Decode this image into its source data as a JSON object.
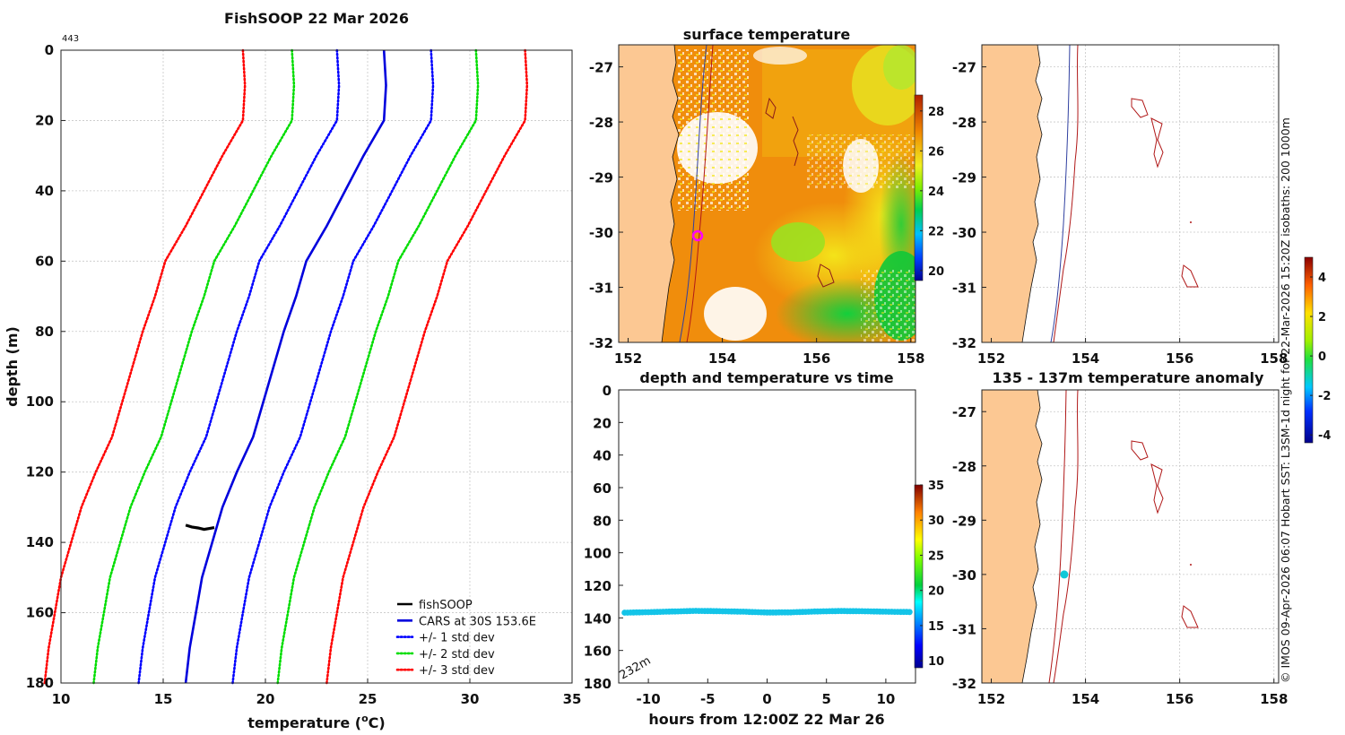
{
  "chart_data": [
    {
      "type": "line",
      "title": "FishSOOP 22 Mar 2026",
      "id_label": "443",
      "xlabel": "temperature (",
      "xlabel_sup": "o",
      "xlabel_unit": "C)",
      "ylabel": "depth (m)",
      "xlim": [
        10,
        35
      ],
      "ylim": [
        180,
        0
      ],
      "xticks": [
        "10",
        "15",
        "20",
        "25",
        "30",
        "35"
      ],
      "yticks": [
        "0",
        "20",
        "40",
        "60",
        "80",
        "100",
        "120",
        "140",
        "160",
        "180"
      ],
      "depth": [
        0,
        10,
        20,
        30,
        40,
        50,
        60,
        70,
        80,
        90,
        100,
        110,
        120,
        130,
        140,
        150,
        160,
        170,
        180
      ],
      "cars_mean": [
        25.8,
        25.9,
        25.8,
        24.8,
        23.9,
        23.0,
        22.0,
        21.5,
        20.9,
        20.4,
        19.9,
        19.4,
        18.6,
        17.9,
        17.4,
        16.9,
        16.6,
        16.3,
        16.1
      ],
      "series_std": [
        {
          "name": "+/- 1 std dev",
          "color": "#0000ff",
          "offset": 2.3
        },
        {
          "name": "+/- 2 std dev",
          "color": "#00dd00",
          "offset": 4.5
        },
        {
          "name": "+/- 3 std dev",
          "color": "#ff0000",
          "offset": 6.9
        }
      ],
      "fishsoop_obs": {
        "temps": [
          16.1,
          16.4,
          16.7,
          17.0,
          17.3,
          17.5
        ],
        "depths": [
          135.1,
          135.6,
          135.9,
          136.3,
          136.0,
          135.8
        ]
      },
      "legend": [
        "fishSOOP",
        "CARS at 30S 153.6E",
        "+/- 1 std dev",
        "+/- 2 std dev",
        "+/- 3 std dev"
      ],
      "legend_position": "bottom-right"
    },
    {
      "type": "heatmap",
      "title": "surface temperature",
      "xlim": [
        151.8,
        158.1
      ],
      "ylim": [
        -32,
        -26.6
      ],
      "xticks": [
        "152",
        "154",
        "156",
        "158"
      ],
      "yticks": [
        "-27",
        "-28",
        "-29",
        "-30",
        "-31",
        "-32"
      ],
      "colorbar": {
        "range": [
          19.5,
          28.8
        ],
        "ticks": [
          "20",
          "22",
          "24",
          "26",
          "28"
        ]
      },
      "marker": {
        "lon": 153.55,
        "lat": -30.0,
        "color": "#ff00ff"
      }
    },
    {
      "type": "scatter",
      "title": "depth and temperature vs time",
      "xlabel": "hours from 12:00Z 22 Mar 26",
      "xlim": [
        -12.5,
        12.5
      ],
      "ylim": [
        180,
        0
      ],
      "xticks": [
        "-10",
        "-5",
        "0",
        "5",
        "10"
      ],
      "yticks": [
        "0",
        "20",
        "40",
        "60",
        "80",
        "100",
        "120",
        "140",
        "160",
        "180"
      ],
      "max_depth_label": "232m",
      "hours": [
        -12,
        -10,
        -8,
        -6,
        -4,
        -2,
        0,
        2,
        4,
        6,
        8,
        10,
        12
      ],
      "depths": [
        136.8,
        136.5,
        136.1,
        135.7,
        135.9,
        136.2,
        136.7,
        136.6,
        136.1,
        135.8,
        135.9,
        136.2,
        136.4
      ],
      "colorbar": {
        "range": [
          9,
          35
        ],
        "ticks": [
          "10",
          "15",
          "20",
          "25",
          "30",
          "35"
        ]
      }
    },
    {
      "type": "scatter",
      "title": "",
      "xlim": [
        151.8,
        158.1
      ],
      "ylim": [
        -32,
        -26.6
      ],
      "xticks": [
        "152",
        "154",
        "156",
        "158"
      ],
      "yticks": [
        "-27",
        "-28",
        "-29",
        "-30",
        "-31",
        "-32"
      ]
    },
    {
      "type": "scatter",
      "title": "135 - 137m temperature anomaly",
      "xlim": [
        151.8,
        158.1
      ],
      "ylim": [
        -32,
        -26.6
      ],
      "xticks": [
        "152",
        "154",
        "156",
        "158"
      ],
      "yticks": [
        "-27",
        "-28",
        "-29",
        "-30",
        "-31",
        "-32"
      ],
      "point": {
        "lon": 153.55,
        "lat": -30.0,
        "color": "#10c8d8"
      },
      "colorbar": {
        "range": [
          -4.4,
          5.0
        ],
        "ticks": [
          "4",
          "2",
          "0",
          "-2",
          "-4"
        ]
      }
    }
  ],
  "caption": "© IMOS 09-Apr-2026 06:07 Hobart SST: L3SM-1d night for 22-Mar-2026 15:20Z isobaths: 200  1000m",
  "colors": {
    "land": "#fcc893",
    "ocean_warm": "#f08d0c",
    "ocean_mid": "#f4e81a",
    "ocean_cool": "#12d03c",
    "isobath200": "#3040a0",
    "isobath1000": "#b01818"
  }
}
